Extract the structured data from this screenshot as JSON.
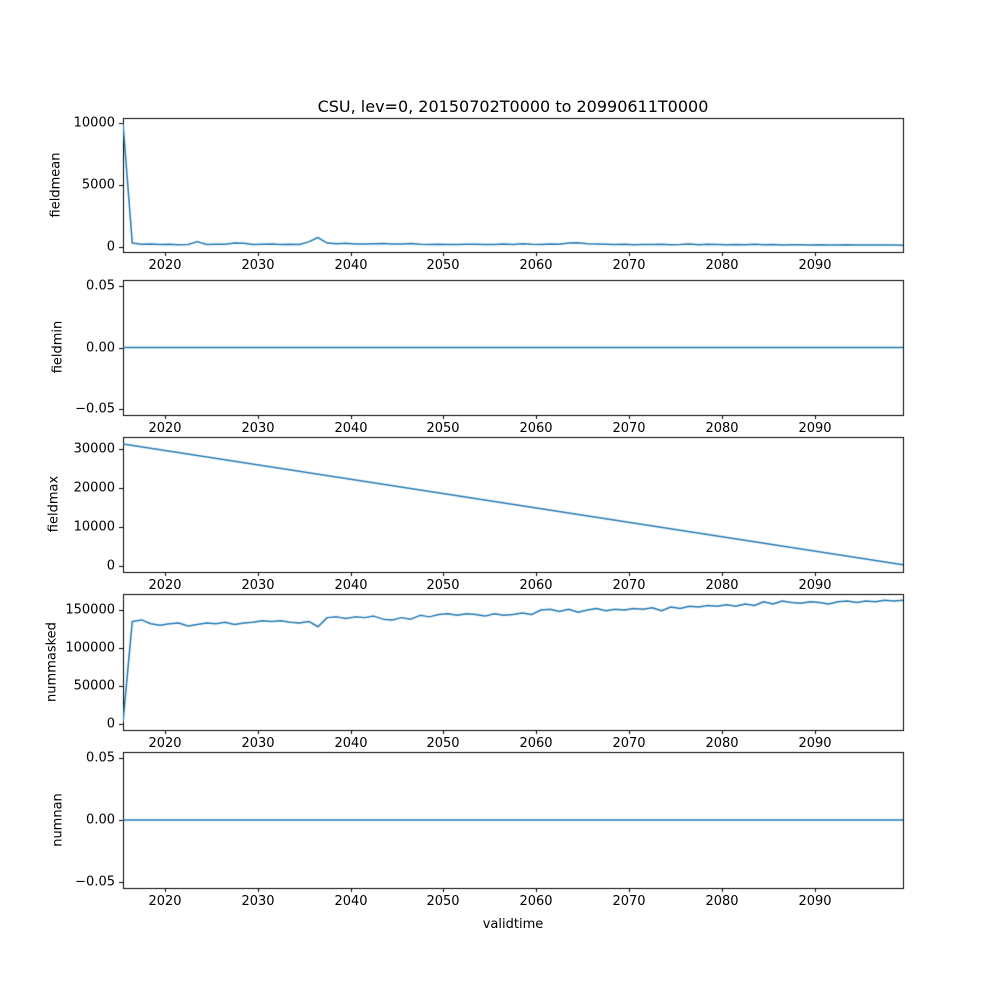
{
  "figure": {
    "title": "CSU, lev=0, 20150702T0000 to 20990611T0000",
    "xlabel": "validtime",
    "line_color": "#1f77b4",
    "axis_color": "#000000",
    "background": "#ffffff",
    "xlim": [
      2015.5,
      2099.5
    ],
    "xticks": [
      2020,
      2030,
      2040,
      2050,
      2060,
      2070,
      2080,
      2090
    ],
    "xtick_labels": [
      "2020",
      "2030",
      "2040",
      "2050",
      "2060",
      "2070",
      "2080",
      "2090"
    ]
  },
  "chart_data": [
    {
      "type": "line",
      "ylabel": "fieldmean",
      "ylim": [
        -420,
        10420
      ],
      "yticks": [
        0,
        5000,
        10000
      ],
      "ytick_labels": [
        "0",
        "5000",
        "10000"
      ],
      "x_start": 2015.5,
      "x_step": 1,
      "values": [
        10000,
        300,
        200,
        220,
        180,
        200,
        170,
        190,
        420,
        180,
        200,
        210,
        300,
        280,
        180,
        200,
        220,
        180,
        200,
        190,
        400,
        750,
        300,
        250,
        280,
        230,
        220,
        250,
        270,
        230,
        220,
        260,
        200,
        180,
        200,
        190,
        180,
        200,
        210,
        190,
        180,
        230,
        180,
        250,
        200,
        180,
        220,
        200,
        300,
        320,
        250,
        220,
        200,
        180,
        200,
        170,
        190,
        180,
        200,
        160,
        180,
        220,
        170,
        200,
        180,
        160,
        180,
        170,
        200,
        160,
        180,
        150,
        160,
        170,
        150,
        160,
        140,
        150,
        160,
        140,
        150,
        140,
        150,
        140,
        130
      ]
    },
    {
      "type": "line",
      "ylabel": "fieldmin",
      "ylim": [
        -0.0551,
        0.0551
      ],
      "yticks": [
        -0.05,
        0.0,
        0.05
      ],
      "ytick_labels": [
        "−0.05",
        "0.00",
        "0.05"
      ],
      "constant": 0.0
    },
    {
      "type": "line",
      "ylabel": "fieldmax",
      "ylim": [
        -1550,
        33000
      ],
      "yticks": [
        0,
        10000,
        20000,
        30000
      ],
      "ytick_labels": [
        "0",
        "10000",
        "20000",
        "30000"
      ],
      "x": [
        2015.5,
        2099.5
      ],
      "values": [
        31200,
        300
      ]
    },
    {
      "type": "line",
      "ylabel": "nummasked",
      "ylim": [
        -8150,
        171150
      ],
      "yticks": [
        0,
        50000,
        100000,
        150000
      ],
      "ytick_labels": [
        "0",
        "50000",
        "100000",
        "150000"
      ],
      "x_start": 2015.5,
      "x_step": 1,
      "values": [
        2000,
        135000,
        137000,
        132000,
        130000,
        132000,
        133000,
        129000,
        131000,
        133000,
        132000,
        134000,
        131000,
        133000,
        134000,
        136000,
        135000,
        136000,
        134000,
        133000,
        135000,
        128000,
        140000,
        141000,
        139000,
        141000,
        140000,
        142000,
        138000,
        137000,
        140000,
        138000,
        143000,
        141000,
        144000,
        145000,
        143000,
        145000,
        144000,
        142000,
        145000,
        143000,
        144000,
        146000,
        144000,
        150000,
        151000,
        148000,
        151000,
        147000,
        150000,
        152000,
        149000,
        151000,
        150000,
        152000,
        151000,
        153000,
        149000,
        154000,
        152000,
        155000,
        154000,
        156000,
        155000,
        157000,
        155000,
        158000,
        156000,
        161000,
        158000,
        162000,
        160000,
        159000,
        161000,
        160000,
        158000,
        161000,
        162000,
        160000,
        162000,
        161000,
        163000,
        162000,
        163000
      ]
    },
    {
      "type": "line",
      "ylabel": "numnan",
      "ylim": [
        -0.0551,
        0.0551
      ],
      "yticks": [
        -0.05,
        0.0,
        0.05
      ],
      "ytick_labels": [
        "−0.05",
        "0.00",
        "0.05"
      ],
      "constant": 0.0
    }
  ]
}
